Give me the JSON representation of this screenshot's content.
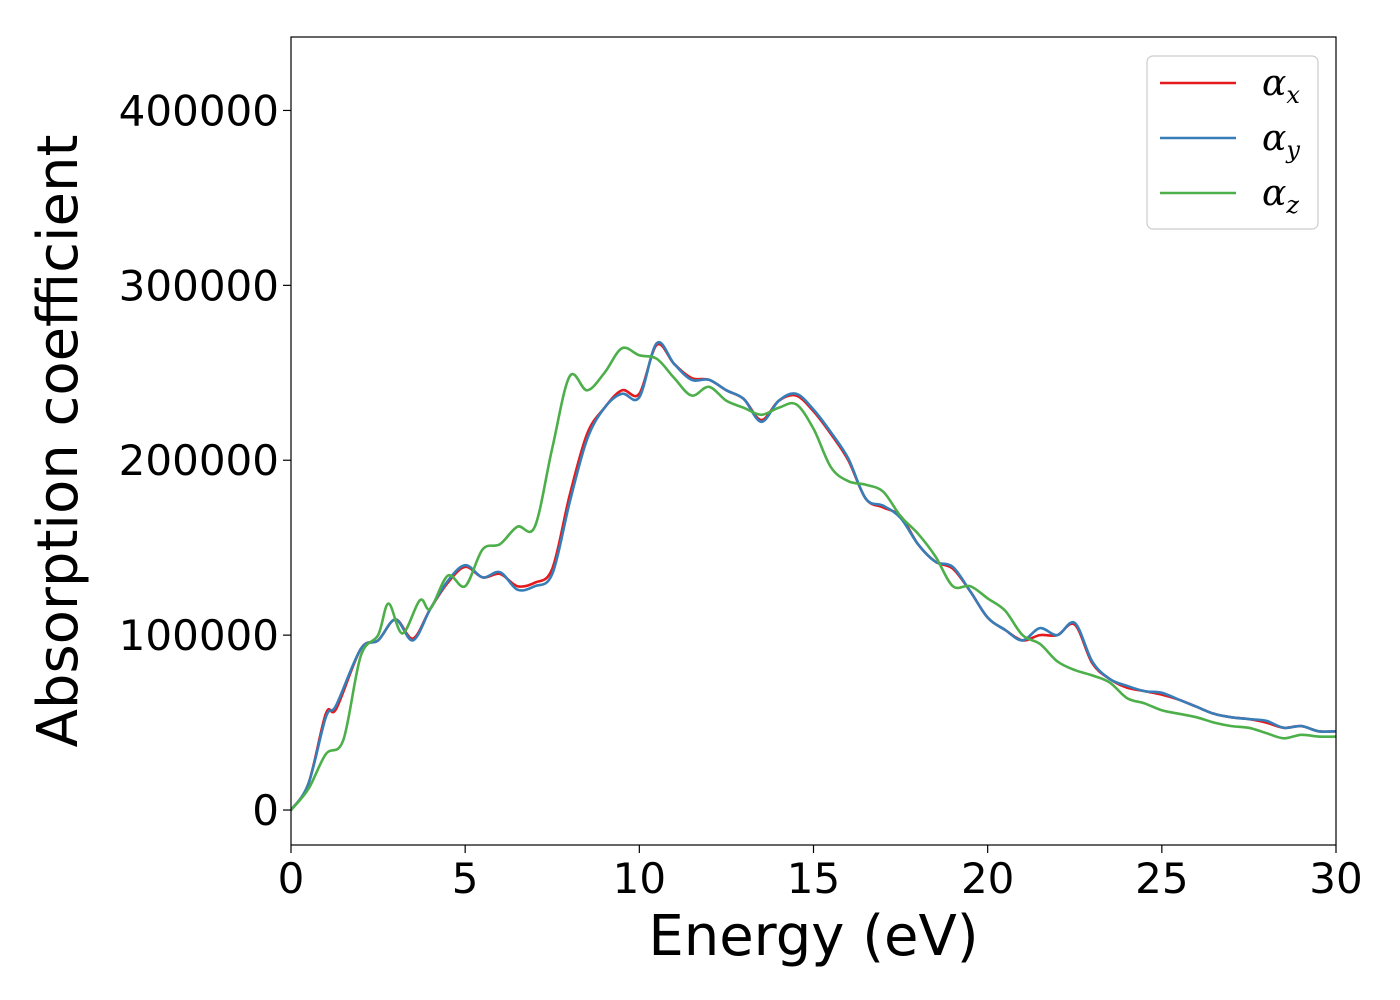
{
  "chart_data": {
    "type": "line",
    "xlabel": "Energy (eV)",
    "ylabel": "Absorption coefficient",
    "xlim": [
      0,
      30
    ],
    "ylim": [
      -20000,
      442000
    ],
    "xticks": [
      0,
      5,
      10,
      15,
      20,
      25,
      30
    ],
    "xtick_labels": [
      "0",
      "5",
      "10",
      "15",
      "20",
      "25",
      "30"
    ],
    "yticks": [
      0,
      100000,
      200000,
      300000,
      400000
    ],
    "ytick_labels": [
      "0",
      "100000",
      "200000",
      "300000",
      "400000"
    ],
    "grid": false,
    "legend_position": "top-right",
    "series": [
      {
        "name": "α",
        "subscript": "x",
        "color": "#e41a1c",
        "x": [
          0,
          0.5,
          1.0,
          1.3,
          2.0,
          2.5,
          3.0,
          3.5,
          4.0,
          4.5,
          5.0,
          5.5,
          6.0,
          6.5,
          7.0,
          7.5,
          8.0,
          8.5,
          9.0,
          9.5,
          10.0,
          10.5,
          11.0,
          11.5,
          12.0,
          12.5,
          13.0,
          13.5,
          14.0,
          14.5,
          15.0,
          15.5,
          16.0,
          16.5,
          17.0,
          17.5,
          18.0,
          18.5,
          19.0,
          19.5,
          20.0,
          20.5,
          21.0,
          21.5,
          22.0,
          22.5,
          23.0,
          23.5,
          24.0,
          24.5,
          25.0,
          25.5,
          26.0,
          26.5,
          27.0,
          27.5,
          28.0,
          28.5,
          29.0,
          29.5,
          30.0
        ],
        "y": [
          0,
          15000,
          55000,
          58000,
          92000,
          97000,
          109000,
          98000,
          115000,
          130000,
          139000,
          133000,
          135000,
          128000,
          130000,
          138000,
          180000,
          215000,
          230000,
          240000,
          238000,
          266000,
          255000,
          247000,
          246000,
          240000,
          235000,
          223000,
          234000,
          237000,
          228000,
          215000,
          200000,
          178000,
          173000,
          168000,
          152000,
          142000,
          138000,
          125000,
          110000,
          103000,
          97000,
          100000,
          100000,
          106000,
          84000,
          75000,
          70000,
          68000,
          66000,
          63000,
          59000,
          55000,
          53000,
          52000,
          50000,
          47000,
          48000,
          45000,
          45000
        ]
      },
      {
        "name": "α",
        "subscript": "y",
        "color": "#377eb8",
        "x": [
          0,
          0.5,
          1.0,
          1.3,
          2.0,
          2.5,
          3.0,
          3.5,
          4.0,
          4.5,
          5.0,
          5.5,
          6.0,
          6.5,
          7.0,
          7.5,
          8.0,
          8.5,
          9.0,
          9.5,
          10.0,
          10.5,
          11.0,
          11.5,
          12.0,
          12.5,
          13.0,
          13.5,
          14.0,
          14.5,
          15.0,
          15.5,
          16.0,
          16.5,
          17.0,
          17.5,
          18.0,
          18.5,
          19.0,
          19.5,
          20.0,
          20.5,
          21.0,
          21.5,
          22.0,
          22.5,
          23.0,
          23.5,
          24.0,
          24.5,
          25.0,
          25.5,
          26.0,
          26.5,
          27.0,
          27.5,
          28.0,
          28.5,
          29.0,
          29.5,
          30.0
        ],
        "y": [
          0,
          15000,
          53000,
          60000,
          92000,
          97000,
          109000,
          97000,
          115000,
          131000,
          140000,
          133000,
          136000,
          126000,
          128000,
          135000,
          176000,
          212000,
          230000,
          238000,
          236000,
          267000,
          255000,
          246000,
          246000,
          240000,
          235000,
          222000,
          234000,
          238000,
          229000,
          216000,
          201000,
          178000,
          174000,
          167000,
          152000,
          142000,
          139000,
          125000,
          110000,
          103000,
          97000,
          104000,
          100000,
          107000,
          85000,
          75000,
          71000,
          68000,
          67000,
          63000,
          59000,
          55000,
          53000,
          52000,
          51000,
          47000,
          48000,
          45000,
          45000
        ]
      },
      {
        "name": "α",
        "subscript": "z",
        "color": "#4daf4a",
        "x": [
          0,
          0.5,
          1.0,
          1.5,
          2.0,
          2.5,
          2.8,
          3.2,
          3.7,
          4.0,
          4.5,
          5.0,
          5.5,
          6.0,
          6.5,
          7.0,
          7.5,
          8.0,
          8.5,
          9.0,
          9.5,
          10.0,
          10.5,
          11.0,
          11.5,
          12.0,
          12.5,
          13.0,
          13.5,
          14.0,
          14.5,
          15.0,
          15.5,
          16.0,
          16.5,
          17.0,
          17.5,
          18.0,
          18.5,
          19.0,
          19.5,
          20.0,
          20.5,
          21.0,
          21.5,
          22.0,
          22.5,
          23.0,
          23.5,
          24.0,
          24.5,
          25.0,
          25.5,
          26.0,
          26.5,
          27.0,
          27.5,
          28.0,
          28.5,
          29.0,
          29.5,
          30.0
        ],
        "y": [
          0,
          12000,
          32000,
          40000,
          88000,
          100000,
          118000,
          101000,
          120000,
          115000,
          134000,
          128000,
          149000,
          152000,
          162000,
          162000,
          207000,
          248000,
          240000,
          250000,
          264000,
          260000,
          258000,
          247000,
          237000,
          242000,
          234000,
          230000,
          226000,
          230000,
          232000,
          218000,
          196000,
          188000,
          186000,
          182000,
          168000,
          158000,
          145000,
          128000,
          128000,
          121000,
          114000,
          100000,
          95000,
          85000,
          80000,
          77000,
          73000,
          64000,
          61000,
          57000,
          55000,
          53000,
          50000,
          48000,
          47000,
          44000,
          41000,
          43000,
          42000,
          42000
        ]
      }
    ]
  }
}
